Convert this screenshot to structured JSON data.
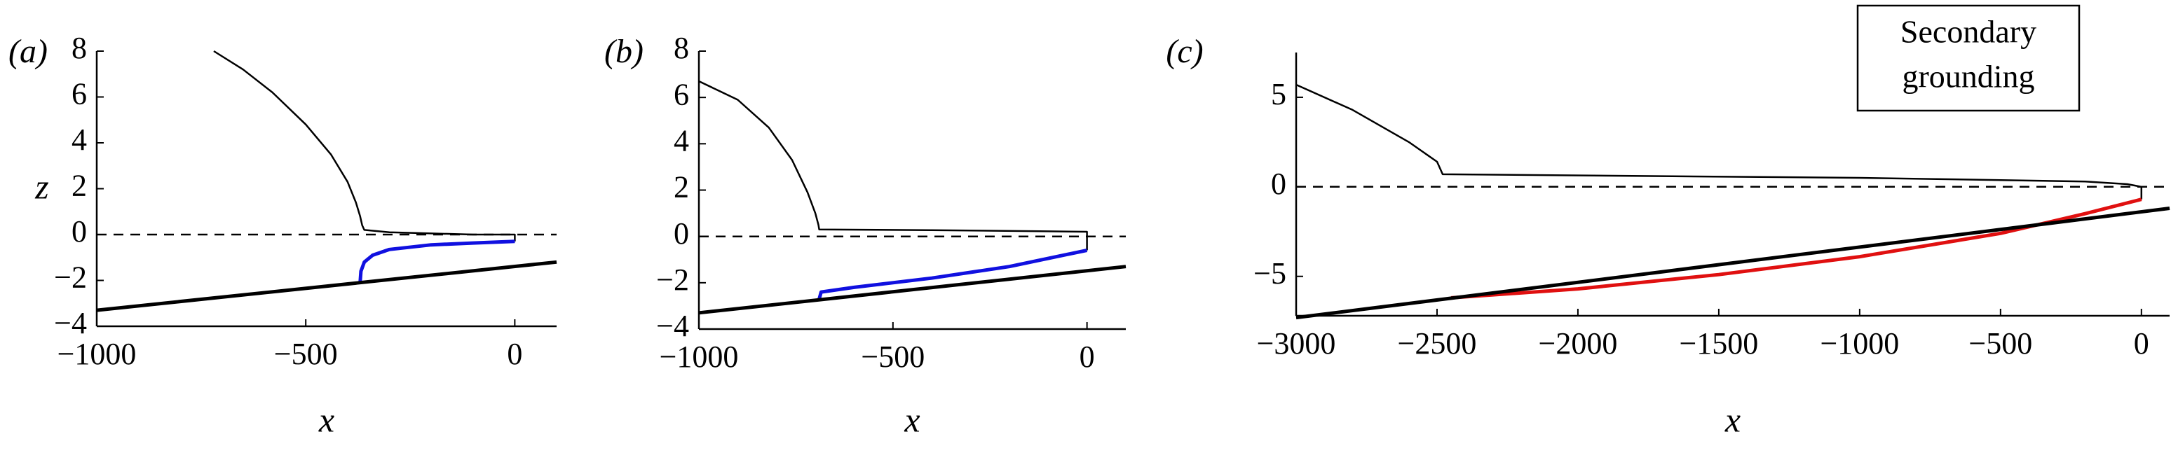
{
  "chart_data": [
    {
      "type": "line",
      "panel_label": "(a)",
      "xlabel": "x",
      "ylabel": "z",
      "xlim": [
        -1000,
        100
      ],
      "ylim": [
        -4,
        8
      ],
      "xticks": [
        {
          "value": -1000,
          "label": "−1000"
        },
        {
          "value": -500,
          "label": "−500"
        },
        0
      ],
      "yticks": [
        8,
        6,
        4,
        2,
        0,
        {
          "value": -2,
          "label": "−2"
        },
        {
          "value": -4,
          "label": "−4"
        }
      ],
      "series": [
        {
          "color": "#000000",
          "linewidth": 2.5,
          "x": [
            -720,
            -650,
            -580,
            -500,
            -440,
            -400,
            -380,
            -370,
            -365,
            -360,
            -300,
            -200,
            -100,
            -10,
            0,
            0
          ],
          "values": [
            8,
            7.2,
            6.2,
            4.8,
            3.5,
            2.3,
            1.4,
            0.8,
            0.4,
            0.2,
            0.1,
            0.05,
            0,
            0,
            0,
            -0.3
          ]
        },
        {
          "color": "#1010e0",
          "linewidth": 5,
          "x": [
            -370,
            -368,
            -360,
            -340,
            -300,
            -200,
            -100,
            0
          ],
          "values": [
            -2.1,
            -1.6,
            -1.2,
            -0.9,
            -0.65,
            -0.45,
            -0.37,
            -0.3
          ]
        },
        {
          "color": "#000000",
          "linewidth": 5,
          "x": [
            -1000,
            100
          ],
          "values": [
            -3.3,
            -1.2
          ]
        },
        {
          "color": "#000000",
          "linewidth": 2.5,
          "dashed": true,
          "x": [
            -1000,
            100
          ],
          "values": [
            0,
            0
          ]
        }
      ]
    },
    {
      "type": "line",
      "panel_label": "(b)",
      "xlabel": "x",
      "xlim": [
        -1000,
        100
      ],
      "ylim": [
        -4,
        8
      ],
      "xticks": [
        {
          "value": -1000,
          "label": "−1000"
        },
        {
          "value": -500,
          "label": "−500"
        },
        0
      ],
      "yticks": [
        8,
        6,
        4,
        2,
        0,
        {
          "value": -2,
          "label": "−2"
        },
        {
          "value": -4,
          "label": "−4"
        }
      ],
      "series": [
        {
          "color": "#000000",
          "linewidth": 2.5,
          "x": [
            -1000,
            -900,
            -820,
            -760,
            -720,
            -700,
            -692,
            -690,
            -400,
            -100,
            0,
            0
          ],
          "values": [
            6.7,
            5.9,
            4.7,
            3.3,
            1.9,
            1.0,
            0.5,
            0.3,
            0.27,
            0.22,
            0.2,
            -0.6
          ]
        },
        {
          "color": "#1010e0",
          "linewidth": 5,
          "x": [
            -690,
            -685,
            -600,
            -400,
            -200,
            0
          ],
          "values": [
            -2.7,
            -2.4,
            -2.2,
            -1.8,
            -1.3,
            -0.6
          ]
        },
        {
          "color": "#000000",
          "linewidth": 5,
          "x": [
            -1000,
            100
          ],
          "values": [
            -3.3,
            -1.3
          ]
        },
        {
          "color": "#000000",
          "linewidth": 2.5,
          "dashed": true,
          "x": [
            -1000,
            100
          ],
          "values": [
            0,
            0
          ]
        }
      ]
    },
    {
      "type": "line",
      "panel_label": "(c)",
      "xlabel": "x",
      "annotation": [
        "Secondary",
        "grounding"
      ],
      "xlim": [
        -3000,
        100
      ],
      "ylim": [
        -7.2,
        7.5
      ],
      "xticks": [
        {
          "value": -3000,
          "label": "−3000"
        },
        {
          "value": -2500,
          "label": "−2500"
        },
        {
          "value": -2000,
          "label": "−2000"
        },
        {
          "value": -1500,
          "label": "−1500"
        },
        {
          "value": -1000,
          "label": "−1000"
        },
        {
          "value": -500,
          "label": "−500"
        },
        0
      ],
      "yticks": [
        5,
        0,
        {
          "value": -5,
          "label": "−5"
        }
      ],
      "series": [
        {
          "color": "#000000",
          "linewidth": 2.5,
          "x": [
            -3000,
            -2800,
            -2600,
            -2500,
            -2480,
            -1000,
            -200,
            -50,
            0,
            0
          ],
          "values": [
            5.7,
            4.3,
            2.5,
            1.4,
            0.7,
            0.5,
            0.3,
            0.15,
            0,
            -0.7
          ]
        },
        {
          "color": "#e01010",
          "linewidth": 5,
          "x": [
            -2450,
            -2000,
            -1500,
            -1000,
            -500,
            -200,
            0
          ],
          "values": [
            -6.2,
            -5.7,
            -4.9,
            -3.9,
            -2.6,
            -1.5,
            -0.7
          ]
        },
        {
          "color": "#000000",
          "linewidth": 5,
          "x": [
            -3000,
            100
          ],
          "values": [
            -7.3,
            -1.2
          ]
        },
        {
          "color": "#000000",
          "linewidth": 2.5,
          "dashed": true,
          "x": [
            -3000,
            100
          ],
          "values": [
            0,
            0
          ]
        }
      ]
    }
  ]
}
